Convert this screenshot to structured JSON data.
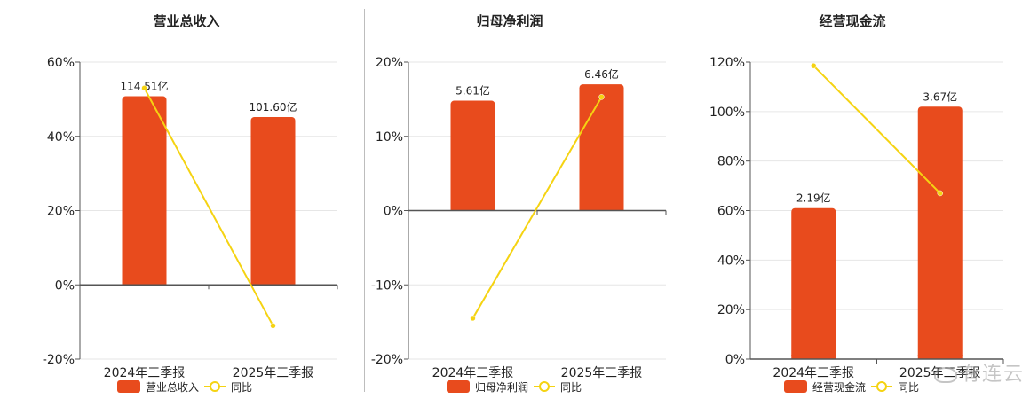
{
  "colors": {
    "bar": "#e84b1d",
    "line": "#f5d312",
    "axis": "#555555",
    "grid": "#e6e6e6",
    "text": "#333333"
  },
  "watermark": "有连云",
  "chart_data": [
    {
      "type": "bar",
      "title": "营业总收入",
      "categories": [
        "2024年三季报",
        "2025年三季报"
      ],
      "series": [
        {
          "name": "营业总收入",
          "kind": "bar",
          "values": [
            50.8,
            45.2
          ],
          "labels": [
            "114.51亿",
            "101.60亿"
          ]
        },
        {
          "name": "同比",
          "kind": "line",
          "values": [
            53,
            -11
          ]
        }
      ],
      "ylim": [
        -20,
        60
      ],
      "yticks": [
        60,
        40,
        20,
        0,
        -20
      ],
      "ytick_labels": [
        "60%",
        "40%",
        "20%",
        "0%",
        "-20%"
      ],
      "grid": true,
      "legend": "bottom"
    },
    {
      "type": "bar",
      "title": "归母净利润",
      "categories": [
        "2024年三季报",
        "2025年三季报"
      ],
      "series": [
        {
          "name": "归母净利润",
          "kind": "bar",
          "values": [
            14.8,
            17.0
          ],
          "labels": [
            "5.61亿",
            "6.46亿"
          ]
        },
        {
          "name": "同比",
          "kind": "line",
          "values": [
            -14.5,
            15.3
          ]
        }
      ],
      "ylim": [
        -20,
        20
      ],
      "yticks": [
        20,
        10,
        0,
        -10,
        -20
      ],
      "ytick_labels": [
        "20%",
        "10%",
        "0%",
        "-10%",
        "-20%"
      ],
      "grid": true,
      "legend": "bottom"
    },
    {
      "type": "bar",
      "title": "经营现金流",
      "categories": [
        "2024年三季报",
        "2025年三季报"
      ],
      "series": [
        {
          "name": "经营现金流",
          "kind": "bar",
          "values": [
            61.0,
            102.0
          ],
          "labels": [
            "2.19亿",
            "3.67亿"
          ]
        },
        {
          "name": "同比",
          "kind": "line",
          "values": [
            118.5,
            67.0
          ]
        }
      ],
      "ylim": [
        0,
        120
      ],
      "yticks": [
        120,
        100,
        80,
        60,
        40,
        20,
        0
      ],
      "ytick_labels": [
        "120%",
        "100%",
        "80%",
        "60%",
        "40%",
        "20%",
        "0%"
      ],
      "grid": true,
      "legend": "bottom"
    }
  ]
}
